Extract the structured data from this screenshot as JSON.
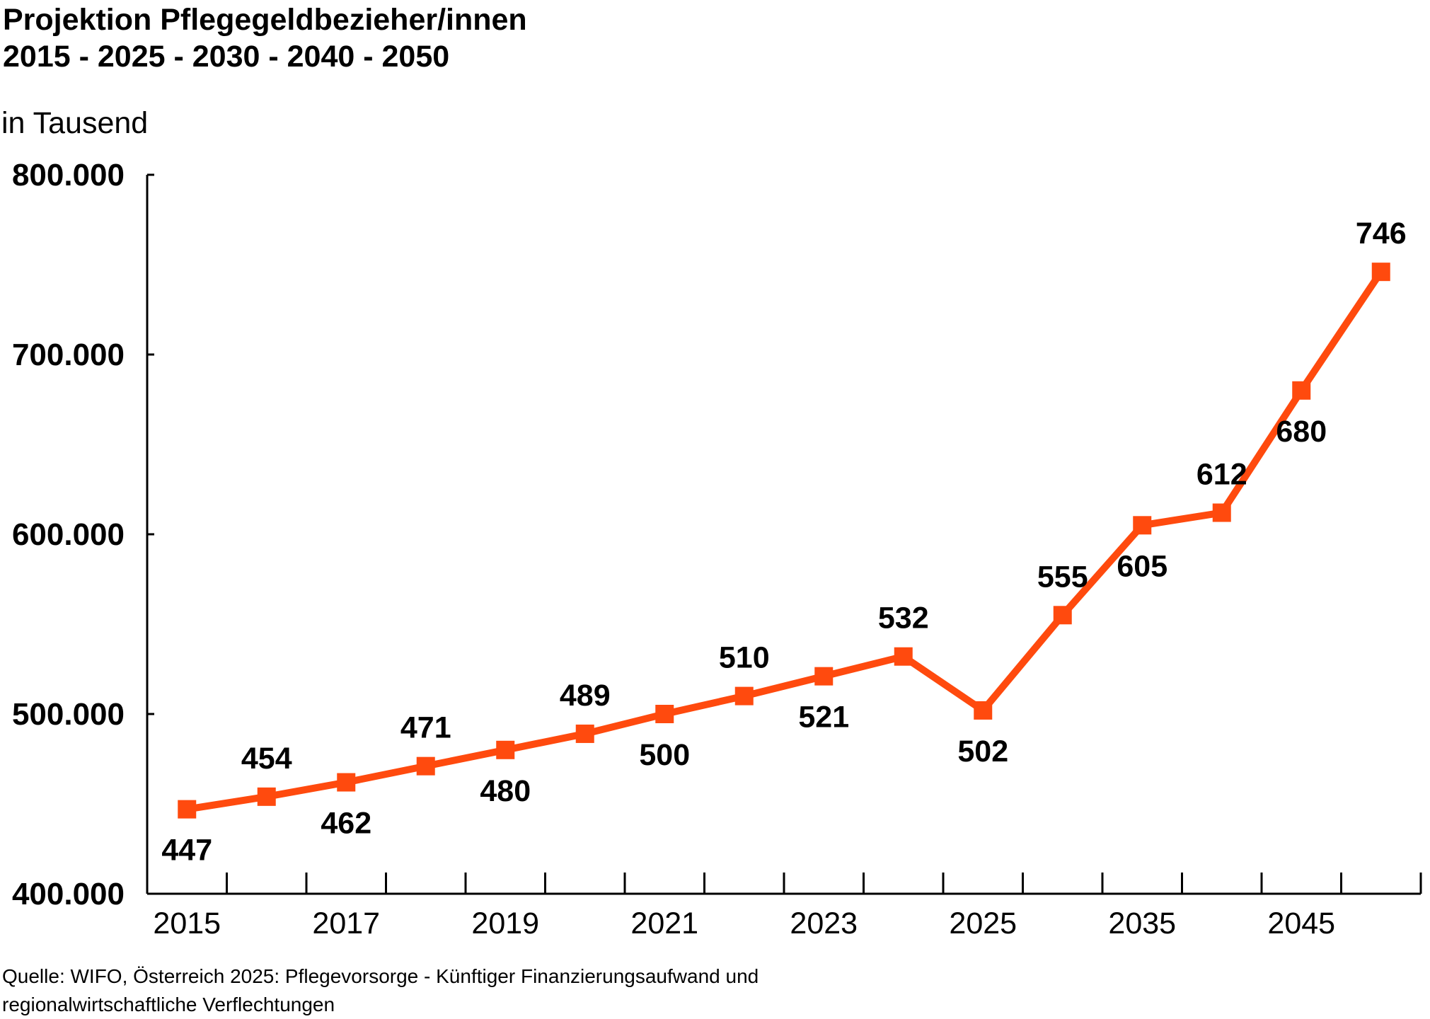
{
  "header": {
    "title_line1": "Projektion Pflegegeldbezieher/innen",
    "title_line2": "2015 - 2025 - 2030 - 2040 - 2050",
    "unit": "in Tausend"
  },
  "footer": {
    "source_line1": "Quelle: WIFO, Österreich 2025: Pflegevorsorge - Künftiger Finanzierungsaufwand und",
    "source_line2": "regionalwirtschaftliche Verflechtungen"
  },
  "chart_data": {
    "type": "line",
    "color": "#ff4a0e",
    "ylim": [
      400000,
      800000
    ],
    "y_ticks": [
      {
        "value": 400000,
        "label": "400.000"
      },
      {
        "value": 500000,
        "label": "500.000"
      },
      {
        "value": 600000,
        "label": "600.000"
      },
      {
        "value": 700000,
        "label": "700.000"
      },
      {
        "value": 800000,
        "label": "800.000"
      }
    ],
    "x_tick_labels": [
      "2015",
      "",
      "2017",
      "",
      "2019",
      "",
      "2021",
      "",
      "2023",
      "",
      "2025",
      "",
      "2035",
      "",
      "2045",
      ""
    ],
    "values": [
      447000,
      454000,
      462000,
      471000,
      480000,
      489000,
      500000,
      510000,
      521000,
      532000,
      502000,
      555000,
      605000,
      612000,
      680000,
      746000
    ],
    "data_labels": [
      "447",
      "454",
      "462",
      "471",
      "480",
      "489",
      "500",
      "510",
      "521",
      "532",
      "502",
      "555",
      "605",
      "612",
      "680",
      "746"
    ],
    "label_positions": [
      "below",
      "above",
      "below",
      "above",
      "below",
      "above",
      "below",
      "above",
      "below",
      "above",
      "below",
      "above",
      "below",
      "above",
      "below",
      "above"
    ],
    "grid": false,
    "legend": "none"
  }
}
